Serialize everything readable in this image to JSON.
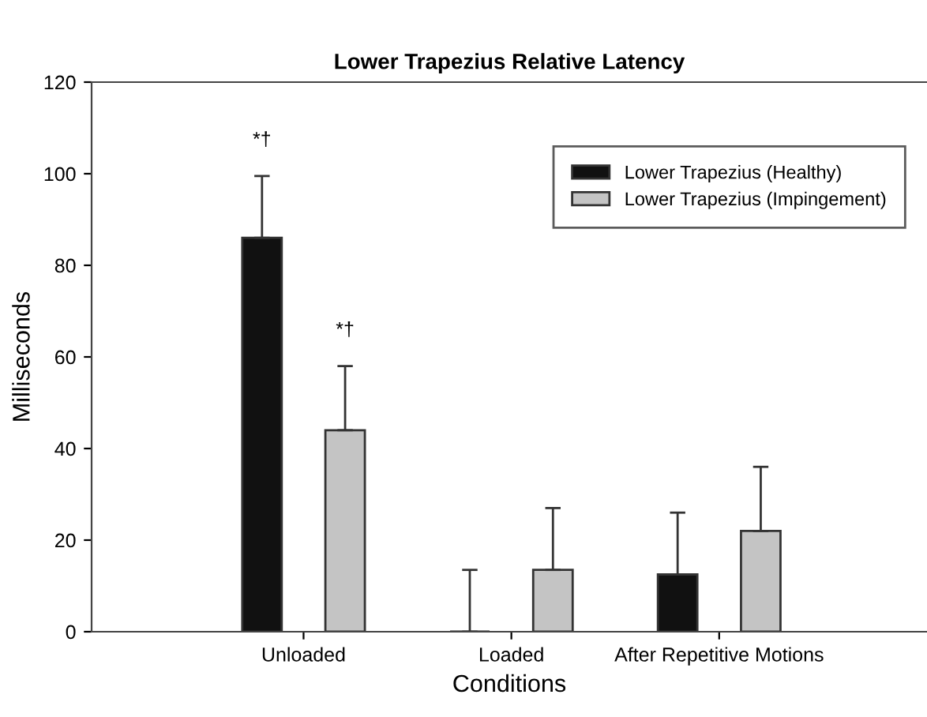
{
  "chart_data": {
    "type": "bar",
    "title": "Lower Trapezius Relative Latency",
    "xlabel": "Conditions",
    "ylabel": "Milliseconds",
    "categories": [
      "Unloaded",
      "Loaded",
      "After Repetitive Motions"
    ],
    "series": [
      {
        "name": "Lower Trapezius (Healthy)",
        "color": "#111111",
        "values": [
          86,
          0,
          12.5
        ],
        "errors": [
          [
            86,
            99.5
          ],
          [
            0,
            13.5
          ],
          [
            12.5,
            26
          ]
        ]
      },
      {
        "name": "Lower Trapezius (Impingement)",
        "color": "#c4c4c4",
        "values": [
          44,
          13.5,
          22
        ],
        "errors": [
          [
            44,
            58
          ],
          [
            13.5,
            27
          ],
          [
            22,
            36
          ]
        ]
      }
    ],
    "ylim": [
      0,
      120
    ],
    "yticks": [
      0,
      20,
      40,
      60,
      80,
      100,
      120
    ],
    "grid": false,
    "legend": "top right",
    "annotations": [
      "*†",
      "*†"
    ]
  }
}
